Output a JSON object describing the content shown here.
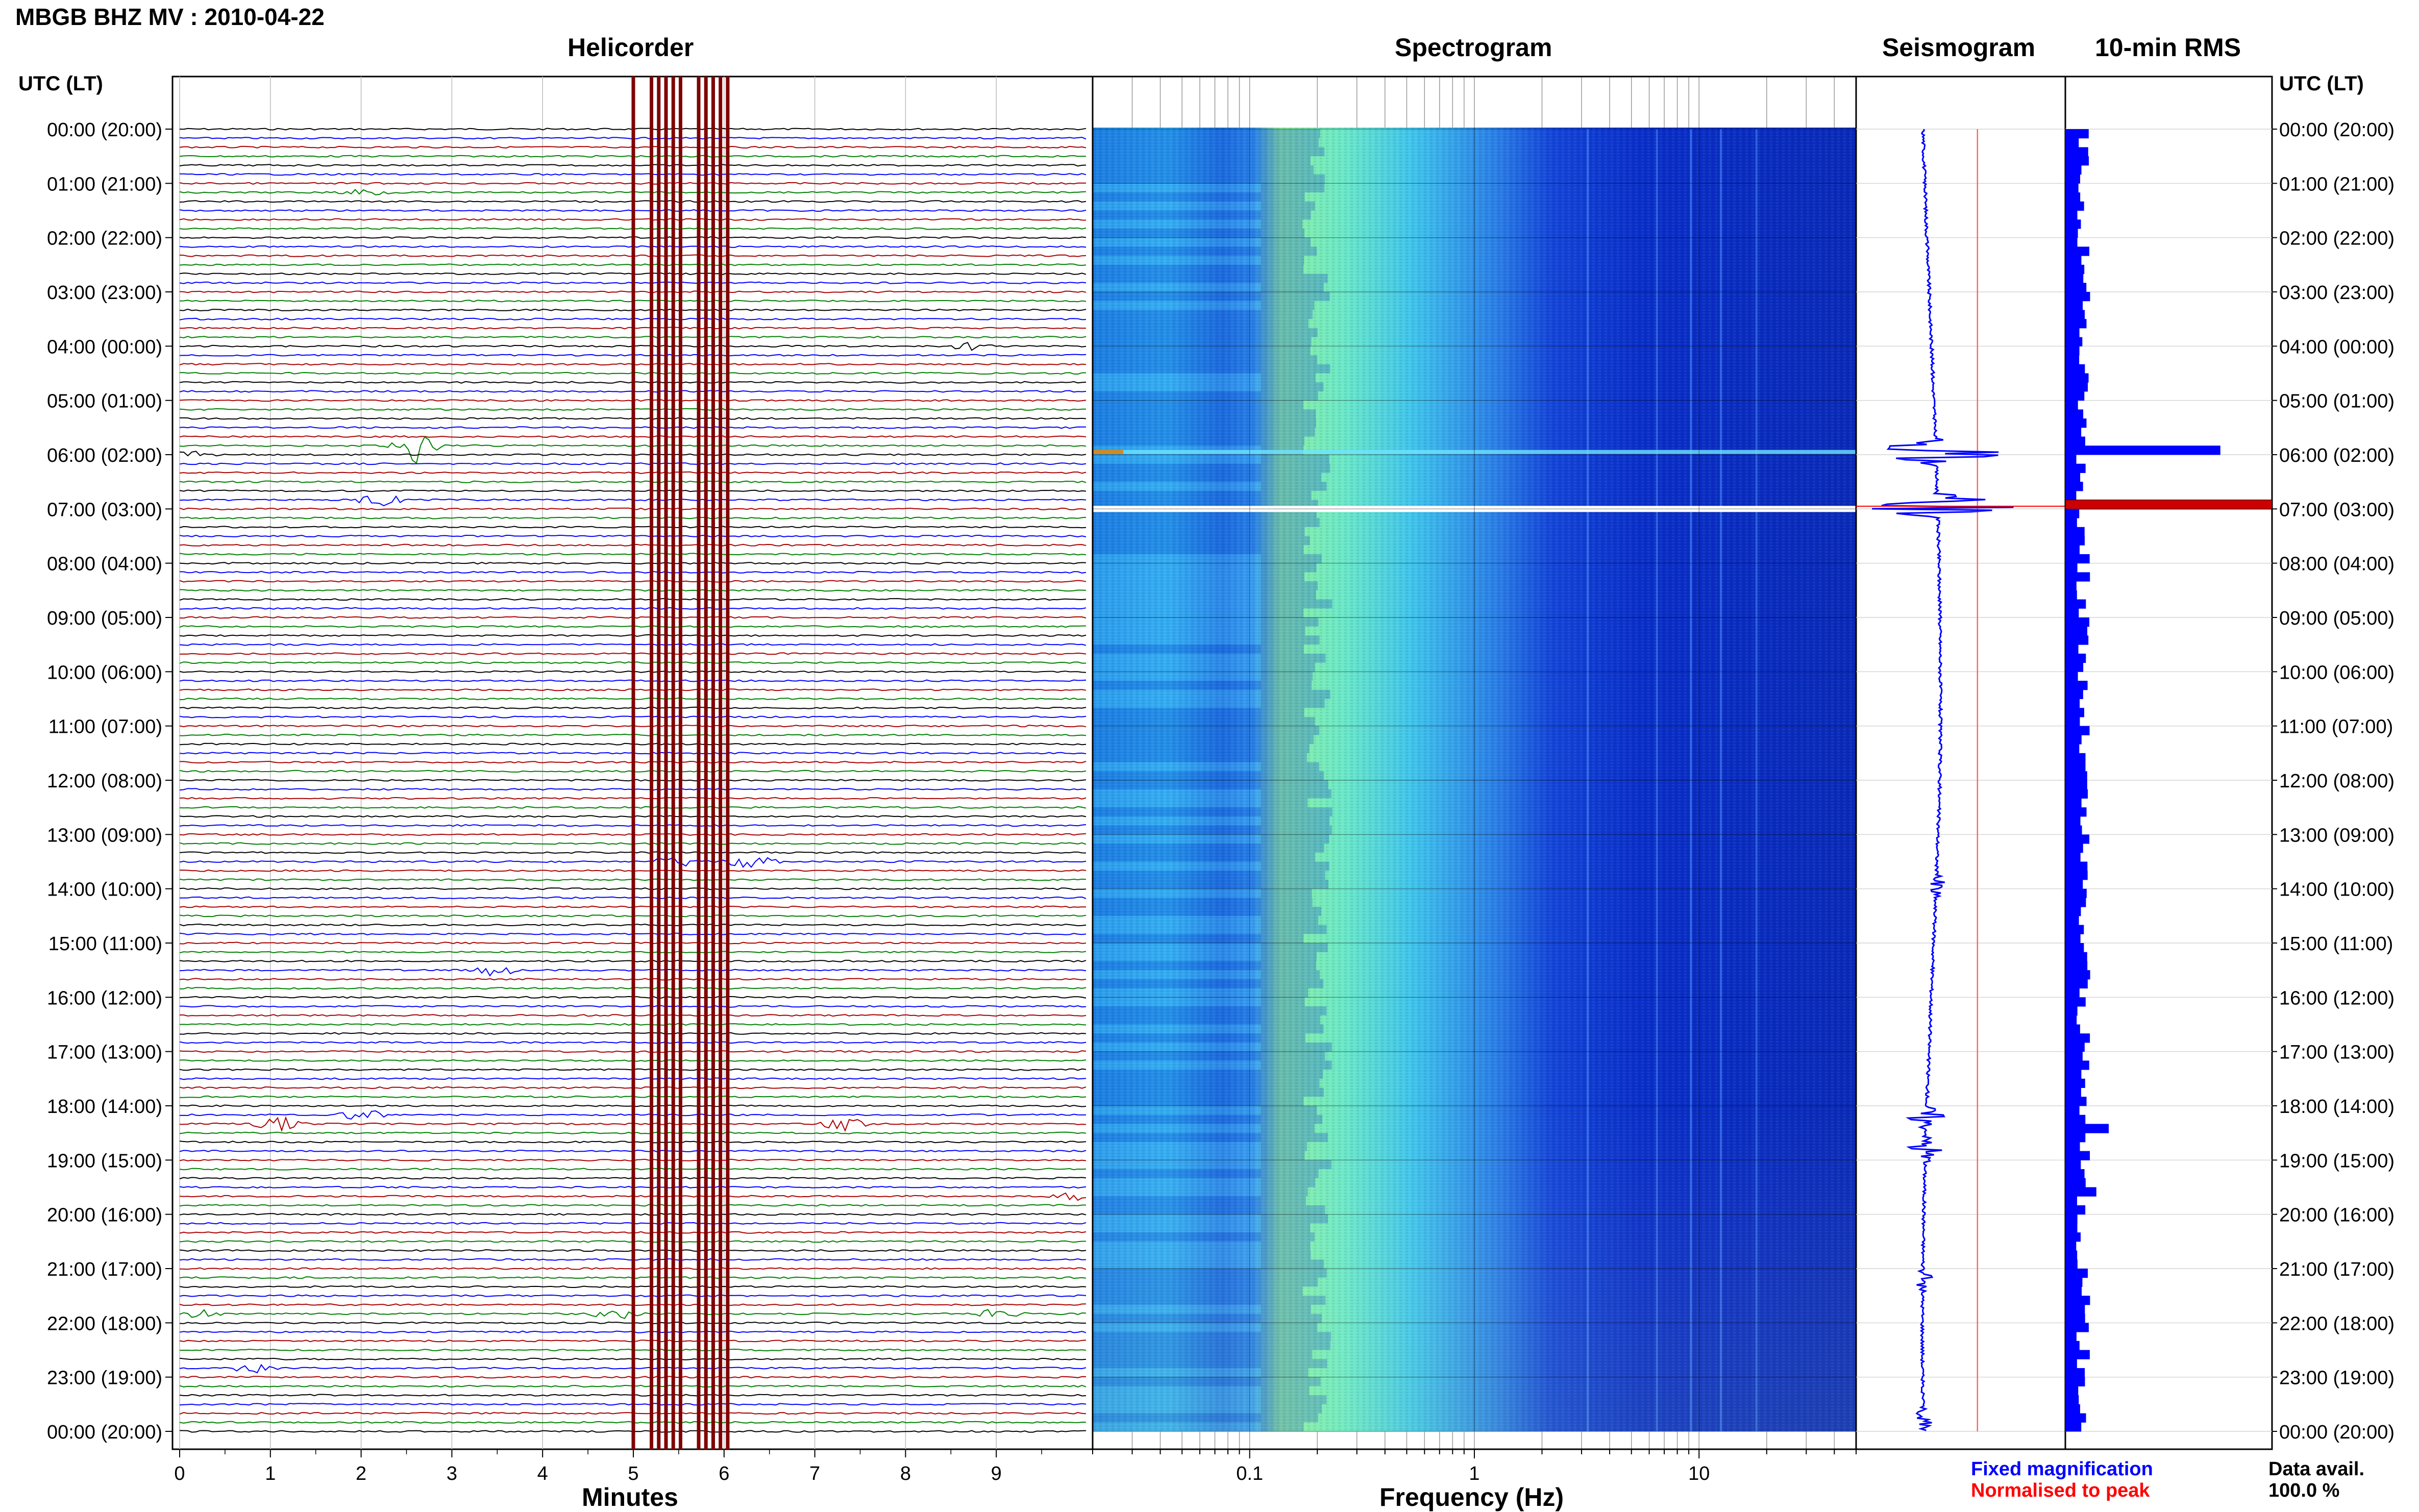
{
  "header": {
    "title": "MBGB BHZ MV : 2010-04-22",
    "utc_label_left": "UTC (LT)",
    "utc_label_right": "UTC (LT)"
  },
  "panels": {
    "helicorder": "Helicorder",
    "spectrogram": "Spectrogram",
    "seismogram": "Seismogram",
    "rms": "10-min RMS"
  },
  "legend": {
    "fixed": "Fixed magnification",
    "normalised": "Normalised to peak",
    "data_avail_label": "Data avail.",
    "data_avail_value": "100.0 %"
  },
  "colors": {
    "trace_cycle": [
      "#000000",
      "#0000ff",
      "#aa0000",
      "#008000"
    ],
    "spectrogram_low": "#0000cc",
    "spectrogram_high": "#80ff80",
    "rms_bar": "#0000ff",
    "peak_bar": "#cc0000",
    "marker_line": "#800000",
    "normalised_line": "#ff6666"
  },
  "chart_data": [
    {
      "type": "line",
      "name": "helicorder",
      "title": "Helicorder",
      "xlabel": "Minutes",
      "x_ticks": [
        "0",
        "1",
        "2",
        "3",
        "4",
        "5",
        "6",
        "7",
        "8",
        "9"
      ],
      "xlim": [
        0,
        10
      ],
      "rows_per_hour": 6,
      "y_ticks": [
        "00:00 (20:00)",
        "01:00 (21:00)",
        "02:00 (22:00)",
        "03:00 (23:00)",
        "04:00 (00:00)",
        "05:00 (01:00)",
        "06:00 (02:00)",
        "07:00 (03:00)",
        "08:00 (04:00)",
        "09:00 (05:00)",
        "10:00 (06:00)",
        "11:00 (07:00)",
        "12:00 (08:00)",
        "13:00 (09:00)",
        "14:00 (10:00)",
        "15:00 (11:00)",
        "16:00 (12:00)",
        "17:00 (13:00)",
        "18:00 (14:00)",
        "19:00 (15:00)",
        "20:00 (16:00)",
        "21:00 (17:00)",
        "22:00 (18:00)",
        "23:00 (19:00)",
        "00:00 (20:00)"
      ],
      "marker_minutes": [
        5.0,
        5.2,
        5.28,
        5.36,
        5.44,
        5.52,
        5.72,
        5.8,
        5.88,
        5.96,
        6.04
      ],
      "events": [
        {
          "row": 7,
          "minute": 2.0,
          "amplitude": 1.0
        },
        {
          "row": 24,
          "minute": 8.7,
          "amplitude": 0.8
        },
        {
          "row": 35,
          "minute": 2.6,
          "amplitude": 4.0
        },
        {
          "row": 36,
          "minute": 0.1,
          "amplitude": 0.8
        },
        {
          "row": 41,
          "minute": 2.2,
          "amplitude": 1.3
        },
        {
          "row": 81,
          "minute": 5.5,
          "amplitude": 1.8
        },
        {
          "row": 81,
          "minute": 6.3,
          "amplitude": 1.5
        },
        {
          "row": 93,
          "minute": 3.5,
          "amplitude": 1.6
        },
        {
          "row": 109,
          "minute": 2.0,
          "amplitude": 1.5
        },
        {
          "row": 110,
          "minute": 1.1,
          "amplitude": 1.6
        },
        {
          "row": 110,
          "minute": 7.3,
          "amplitude": 1.5
        },
        {
          "row": 118,
          "minute": 9.9,
          "amplitude": 1.0
        },
        {
          "row": 131,
          "minute": 0.2,
          "amplitude": 0.9
        },
        {
          "row": 131,
          "minute": 4.8,
          "amplitude": 1.2
        },
        {
          "row": 131,
          "minute": 9.0,
          "amplitude": 1.0
        },
        {
          "row": 137,
          "minute": 0.8,
          "amplitude": 1.0
        }
      ]
    },
    {
      "type": "heatmap",
      "name": "spectrogram",
      "title": "Spectrogram",
      "xlabel": "Frequency (Hz)",
      "x_scale": "log",
      "xlim": [
        0.02,
        50
      ],
      "x_ticks": [
        "0.1",
        "1",
        "10"
      ],
      "x_tick_values": [
        0.1,
        1,
        10
      ],
      "gap_hour": 7.0
    },
    {
      "type": "line",
      "name": "seismogram",
      "title": "Seismogram",
      "normalised_position": 0.58,
      "bursts": [
        {
          "hour": 5.95,
          "amplitude": 0.85
        },
        {
          "hour": 6.95,
          "amplitude": 1.0
        },
        {
          "hour": 13.95,
          "amplitude": 0.12
        },
        {
          "hour": 18.2,
          "amplitude": 0.22
        },
        {
          "hour": 18.8,
          "amplitude": 0.25
        },
        {
          "hour": 21.2,
          "amplitude": 0.1
        },
        {
          "hour": 23.8,
          "amplitude": 0.1
        }
      ]
    },
    {
      "type": "bar",
      "name": "rms",
      "title": "10-min RMS",
      "orientation": "horizontal",
      "bins_per_hour": 6,
      "baseline_relative": 0.15,
      "spikes": [
        {
          "bin": 35,
          "relative": 0.75
        },
        {
          "bin": 41,
          "relative": 1.0
        },
        {
          "bin": 93,
          "relative": 0.12
        },
        {
          "bin": 110,
          "relative": 0.21
        },
        {
          "bin": 117,
          "relative": 0.15
        }
      ]
    }
  ]
}
